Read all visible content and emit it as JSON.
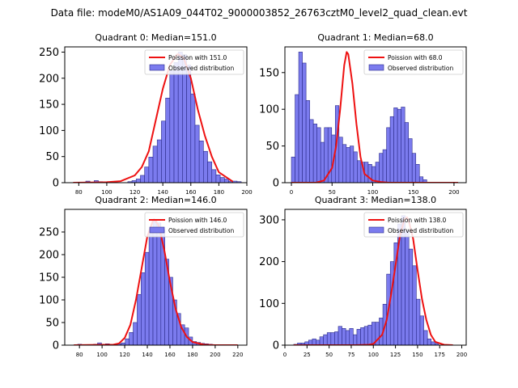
{
  "figure": {
    "suptitle": "Data file: modeM0/AS1A09_044T02_9000003852_26763cztM0_level2_quad_clean.evt"
  },
  "colors": {
    "bar_fill": "#7b7bee",
    "bar_edge": "#2b2b8a",
    "curve": "#ee1111",
    "axis": "#000000"
  },
  "chart_data": [
    {
      "type": "bar",
      "title": "Quadrant 0: Median=151.0",
      "legend": [
        "Poission with 151.0",
        "Observed distribution"
      ],
      "legend_position": "top-right",
      "xlim": [
        70,
        200
      ],
      "ylim": [
        0,
        260
      ],
      "xticks": [
        80,
        100,
        120,
        140,
        160,
        180,
        200
      ],
      "yticks": [
        0,
        50,
        100,
        150,
        200,
        250
      ],
      "bin_start": 76,
      "bin_width": 3,
      "counts": [
        0,
        0,
        0,
        3,
        0,
        4,
        2,
        0,
        0,
        0,
        0,
        0,
        0,
        2,
        4,
        7,
        14,
        30,
        49,
        70,
        82,
        118,
        162,
        215,
        230,
        250,
        245,
        225,
        170,
        110,
        80,
        60,
        40,
        25,
        15,
        10,
        7,
        3,
        3,
        2
      ],
      "curve": {
        "x": [
          76,
          100,
          110,
          120,
          125,
          130,
          135,
          140,
          145,
          150,
          151,
          155,
          160,
          165,
          170,
          175,
          180,
          190
        ],
        "y": [
          0,
          1,
          3,
          14,
          30,
          60,
          120,
          180,
          225,
          245,
          246,
          238,
          200,
          140,
          90,
          50,
          20,
          2
        ]
      }
    },
    {
      "type": "bar",
      "title": "Quadrant 1: Median=68.0",
      "legend": [
        "Poission with 68.0",
        "Observed distribution"
      ],
      "legend_position": "top-right",
      "xlim": [
        -8,
        215
      ],
      "ylim": [
        0,
        185
      ],
      "xticks": [
        0,
        50,
        100,
        150,
        200
      ],
      "yticks": [
        0,
        50,
        100,
        150
      ],
      "bin_start": 0,
      "bin_width": 4.5,
      "counts": [
        35,
        120,
        178,
        163,
        112,
        86,
        80,
        75,
        55,
        75,
        75,
        65,
        105,
        62,
        52,
        48,
        50,
        42,
        30,
        28,
        28,
        25,
        22,
        28,
        40,
        45,
        75,
        90,
        102,
        100,
        103,
        82,
        60,
        40,
        25,
        8,
        4
      ],
      "curve": {
        "x": [
          0,
          30,
          40,
          50,
          55,
          60,
          65,
          68,
          70,
          75,
          80,
          85,
          90,
          100,
          110,
          120,
          150,
          205
        ],
        "y": [
          0,
          0,
          3,
          20,
          50,
          100,
          160,
          178,
          175,
          135,
          80,
          35,
          12,
          3,
          1,
          0,
          0,
          0
        ]
      }
    },
    {
      "type": "bar",
      "title": "Quadrant 2: Median=146.0",
      "legend": [
        "Poission with 146.0",
        "Observed distribution"
      ],
      "legend_position": "top-right",
      "xlim": [
        67,
        228
      ],
      "ylim": [
        0,
        300
      ],
      "xticks": [
        80,
        100,
        120,
        140,
        160,
        180,
        200,
        220
      ],
      "yticks": [
        0,
        50,
        100,
        150,
        200,
        250
      ],
      "bin_start": 75,
      "bin_width": 3.5,
      "counts": [
        0,
        2,
        0,
        0,
        0,
        2,
        5,
        2,
        3,
        2,
        2,
        3,
        5,
        14,
        28,
        50,
        112,
        160,
        205,
        252,
        275,
        270,
        255,
        190,
        150,
        100,
        70,
        45,
        38,
        18,
        8,
        6,
        4,
        3,
        2,
        1
      ],
      "curve": {
        "x": [
          75,
          110,
          115,
          120,
          125,
          130,
          135,
          140,
          145,
          146,
          150,
          155,
          160,
          165,
          170,
          175,
          180,
          190,
          200,
          220
        ],
        "y": [
          0,
          1,
          4,
          16,
          45,
          100,
          170,
          240,
          275,
          278,
          265,
          210,
          140,
          80,
          40,
          18,
          7,
          1,
          0,
          0
        ]
      }
    },
    {
      "type": "bar",
      "title": "Quadrant 3: Median=138.0",
      "legend": [
        "Poission with 138.0",
        "Observed distribution"
      ],
      "legend_position": "top-right",
      "xlim": [
        0,
        205
      ],
      "ylim": [
        0,
        325
      ],
      "xticks": [
        0,
        25,
        50,
        75,
        100,
        125,
        150,
        175,
        200
      ],
      "yticks": [
        0,
        100,
        200,
        300
      ],
      "bin_start": 10,
      "bin_width": 4.2,
      "counts": [
        2,
        5,
        5,
        8,
        12,
        15,
        12,
        20,
        25,
        30,
        30,
        32,
        45,
        40,
        35,
        40,
        25,
        38,
        42,
        45,
        48,
        55,
        55,
        65,
        98,
        170,
        200,
        245,
        290,
        310,
        275,
        230,
        190,
        110,
        70,
        35,
        15,
        8,
        4
      ],
      "curve": {
        "x": [
          10,
          80,
          95,
          100,
          110,
          115,
          120,
          125,
          130,
          135,
          138,
          140,
          145,
          150,
          155,
          160,
          165,
          170,
          180,
          190
        ],
        "y": [
          0,
          0,
          1,
          3,
          25,
          60,
          120,
          190,
          260,
          300,
          306,
          298,
          255,
          180,
          110,
          60,
          25,
          8,
          1,
          0
        ]
      }
    }
  ]
}
